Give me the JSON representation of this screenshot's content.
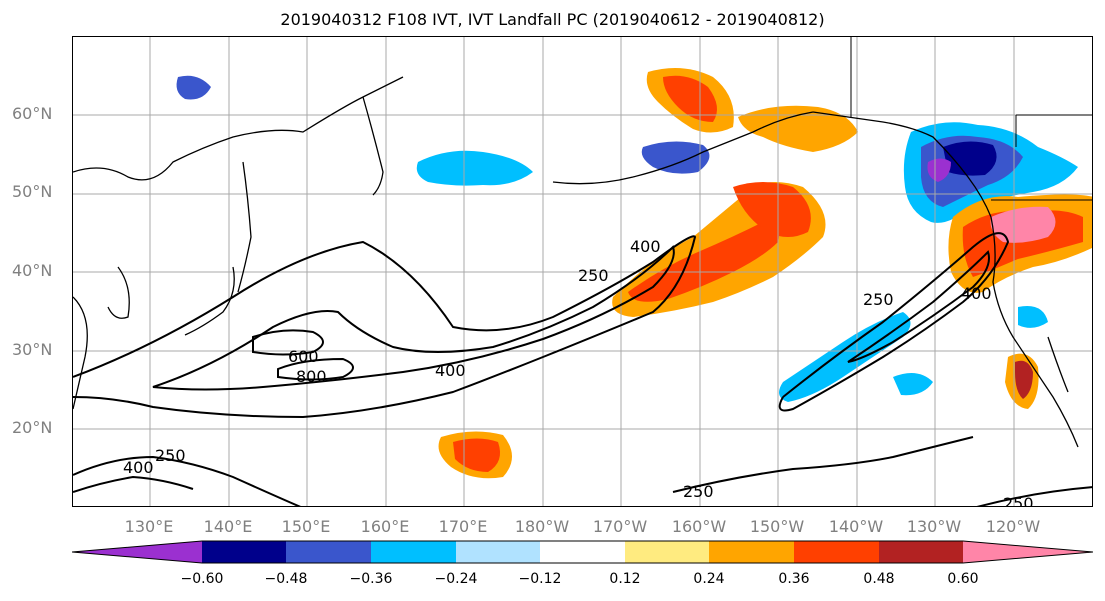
{
  "title": "2019040312 F108 IVT, IVT Landfall PC (2019040612 - 2019040812)",
  "map": {
    "lat_labels": [
      "60°N",
      "50°N",
      "40°N",
      "30°N",
      "20°N"
    ],
    "lon_labels": [
      "130°E",
      "140°E",
      "150°E",
      "160°E",
      "170°E",
      "180°W",
      "170°W",
      "160°W",
      "150°W",
      "140°W",
      "130°W",
      "120°W"
    ],
    "contour_labels": {
      "c250_a": "250",
      "c250_b": "250",
      "c250_c": "250",
      "c250_d": "250",
      "c250_e": "250",
      "c400_a": "400",
      "c400_b": "400",
      "c400_c": "400",
      "c400_d": "400",
      "c600": "600",
      "c800": "800"
    }
  },
  "colorbar": {
    "tick_labels": [
      "−0.60",
      "−0.48",
      "−0.36",
      "−0.24",
      "−0.12",
      "0.12",
      "0.24",
      "0.36",
      "0.48",
      "0.60"
    ],
    "colors": [
      "#9b30d0",
      "#00008b",
      "#3a56cc",
      "#00bfff",
      "#b0e2ff",
      "#ffffff",
      "#ffeb80",
      "#ffa500",
      "#ff4000",
      "#b22222",
      "#ff85a8"
    ]
  },
  "shading_colors": {
    "purple": "#9b30d0",
    "navy": "#00008b",
    "blue": "#3a56cc",
    "deepsky": "#00bfff",
    "lightblue": "#b0e2ff",
    "yellow": "#ffeb80",
    "orange": "#ffa500",
    "redorange": "#ff4000",
    "firebrick": "#b22222",
    "pink": "#ff85a8"
  }
}
